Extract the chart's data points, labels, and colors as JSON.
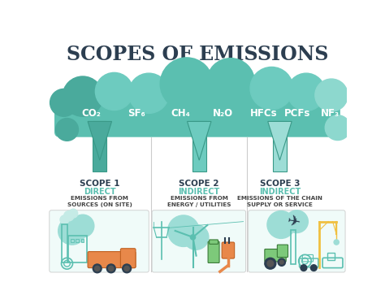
{
  "title": "SCOPES OF EMISSIONS",
  "title_color": "#2c3e50",
  "title_fontsize": 17,
  "bg_color": "#ffffff",
  "cloud_color_main": "#5bbfb0",
  "cloud_color_mid": "#6dcbbf",
  "cloud_color_light": "#8dd8ce",
  "cloud_color_dark": "#4aaa9c",
  "arrow_color_s1": "#4aaa9c",
  "arrow_color_s2": "#6dcbbf",
  "arrow_color_s3": "#9dddd6",
  "arrow_edge": "#3a9988",
  "chemicals": [
    "CO₂",
    "SF₆",
    "CH₄",
    "N₂O",
    "HFCs",
    "PCFs",
    "NF₃"
  ],
  "chem_color": "#ffffff",
  "scope_labels": [
    "SCOPE 1",
    "SCOPE 2",
    "SCOPE 3"
  ],
  "scope_types": [
    "DIRECT",
    "INDIRECT",
    "INDIRECT"
  ],
  "scope_type_color": "#5bbfb0",
  "scope_desc": [
    "EMISSIONS FROM\nSOURCES (ON SITE)",
    "EMISSIONS FROM\nENERGY / UTILITIES",
    "EMISSIONS OF THE CHAIN\nSUPPLY OR SERVICE"
  ],
  "scope_desc_color": "#444444",
  "scope_label_color": "#2c3e50",
  "divider_color": "#cccccc",
  "panel_bg": "#f0fbf9",
  "teal": "#5bbfb0",
  "teal_light": "#9dddd6",
  "orange": "#e8884a",
  "green": "#7dc97a",
  "yellow": "#f0c040",
  "dark": "#2c3e50"
}
